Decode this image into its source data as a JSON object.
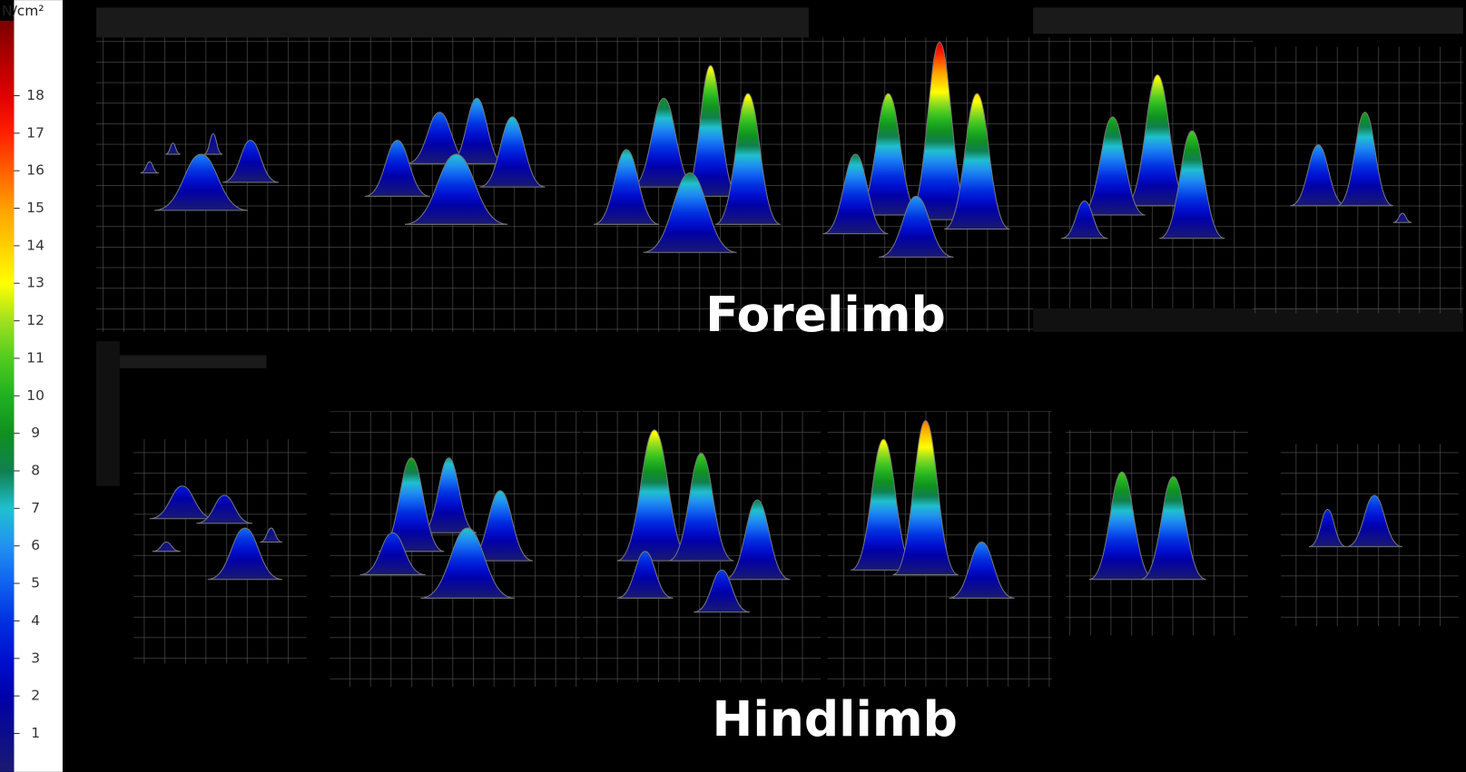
{
  "colorbar": {
    "unit": "N/cm²",
    "range": [
      0,
      20
    ],
    "ticks": [
      1,
      2,
      3,
      4,
      5,
      6,
      7,
      8,
      9,
      10,
      11,
      12,
      13,
      14,
      15,
      16,
      17,
      18
    ]
  },
  "labels": {
    "top": "Forelimb",
    "bottom": "Hindlimb"
  }
}
